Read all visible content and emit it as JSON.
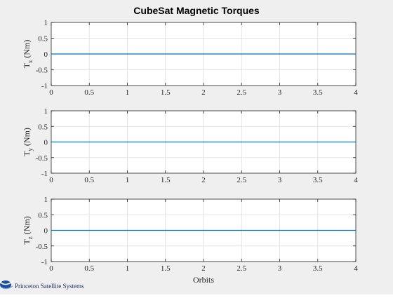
{
  "figure": {
    "title": "CubeSat Magnetic Torques",
    "xlabel": "Orbits",
    "logo_text": "Princeton Satellite Systems"
  },
  "colors": {
    "figure_bg": "#efefef",
    "axes_bg": "#ffffff",
    "grid": "#e3e3e3",
    "axis_line": "#262626",
    "series": "#0072bd"
  },
  "chart_data": [
    {
      "type": "line",
      "ylabel_main": "T",
      "ylabel_sub": "x",
      "ylabel_unit": "(Nm)",
      "xlim": [
        0,
        4
      ],
      "ylim": [
        -1,
        1
      ],
      "xticks": [
        "0",
        "0.5",
        "1",
        "1.5",
        "2",
        "2.5",
        "3",
        "3.5",
        "4"
      ],
      "yticks": [
        "1",
        "0.5",
        "0",
        "-0.5",
        "-1"
      ],
      "grid": true,
      "series": [
        {
          "x": [
            0,
            4
          ],
          "y": [
            0,
            0
          ]
        }
      ]
    },
    {
      "type": "line",
      "ylabel_main": "T",
      "ylabel_sub": "y",
      "ylabel_unit": "(Nm)",
      "xlim": [
        0,
        4
      ],
      "ylim": [
        -1,
        1
      ],
      "xticks": [
        "0",
        "0.5",
        "1",
        "1.5",
        "2",
        "2.5",
        "3",
        "3.5",
        "4"
      ],
      "yticks": [
        "1",
        "0.5",
        "0",
        "-0.5",
        "-1"
      ],
      "grid": true,
      "series": [
        {
          "x": [
            0,
            4
          ],
          "y": [
            0,
            0
          ]
        }
      ]
    },
    {
      "type": "line",
      "ylabel_main": "T",
      "ylabel_sub": "z",
      "ylabel_unit": "(Nm)",
      "xlim": [
        0,
        4
      ],
      "ylim": [
        -1,
        1
      ],
      "xticks": [
        "0",
        "0.5",
        "1",
        "1.5",
        "2",
        "2.5",
        "3",
        "3.5",
        "4"
      ],
      "yticks": [
        "1",
        "0.5",
        "0",
        "-0.5",
        "-1"
      ],
      "grid": true,
      "series": [
        {
          "x": [
            0,
            4
          ],
          "y": [
            0,
            0
          ]
        }
      ]
    }
  ]
}
